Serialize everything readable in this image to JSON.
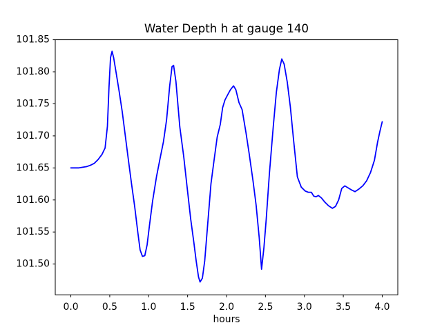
{
  "figure": {
    "background_color": "#ffffff",
    "frame_color": "#000000"
  },
  "chart_data": {
    "type": "line",
    "title": "Water Depth h at gauge 140",
    "xlabel": "hours",
    "ylabel": "",
    "grid": false,
    "legend": null,
    "line_color": "#0000ff",
    "xlim": [
      -0.2,
      4.2
    ],
    "ylim": [
      101.452,
      101.85
    ],
    "xticks": [
      0.0,
      0.5,
      1.0,
      1.5,
      2.0,
      2.5,
      3.0,
      3.5,
      4.0
    ],
    "xtick_labels": [
      "0.0",
      "0.5",
      "1.0",
      "1.5",
      "2.0",
      "2.5",
      "3.0",
      "3.5",
      "4.0"
    ],
    "yticks": [
      101.5,
      101.55,
      101.6,
      101.65,
      101.7,
      101.75,
      101.8,
      101.85
    ],
    "ytick_labels": [
      "101.50",
      "101.55",
      "101.60",
      "101.65",
      "101.70",
      "101.75",
      "101.80",
      "101.85"
    ],
    "series": [
      {
        "name": "water-depth-h",
        "x": [
          0.0,
          0.05,
          0.1,
          0.15,
          0.2,
          0.25,
          0.3,
          0.35,
          0.4,
          0.44,
          0.47,
          0.49,
          0.51,
          0.53,
          0.55,
          0.58,
          0.62,
          0.66,
          0.7,
          0.74,
          0.78,
          0.82,
          0.86,
          0.89,
          0.92,
          0.95,
          0.98,
          1.01,
          1.05,
          1.1,
          1.15,
          1.19,
          1.23,
          1.27,
          1.3,
          1.32,
          1.35,
          1.4,
          1.45,
          1.49,
          1.54,
          1.58,
          1.61,
          1.64,
          1.66,
          1.69,
          1.72,
          1.76,
          1.8,
          1.84,
          1.88,
          1.92,
          1.95,
          1.98,
          2.01,
          2.05,
          2.09,
          2.12,
          2.16,
          2.2,
          2.25,
          2.29,
          2.34,
          2.38,
          2.42,
          2.45,
          2.48,
          2.51,
          2.55,
          2.6,
          2.64,
          2.68,
          2.71,
          2.74,
          2.78,
          2.82,
          2.86,
          2.91,
          2.96,
          3.01,
          3.05,
          3.09,
          3.12,
          3.15,
          3.18,
          3.22,
          3.26,
          3.31,
          3.36,
          3.4,
          3.44,
          3.48,
          3.52,
          3.56,
          3.6,
          3.65,
          3.7,
          3.75,
          3.8,
          3.85,
          3.9,
          3.94,
          3.97,
          4.0
        ],
        "y": [
          101.65,
          101.65,
          101.65,
          101.651,
          101.652,
          101.654,
          101.657,
          101.663,
          101.671,
          101.681,
          101.715,
          101.775,
          101.822,
          101.832,
          101.822,
          101.8,
          101.77,
          101.738,
          101.7,
          101.662,
          101.625,
          101.59,
          101.55,
          101.522,
          101.512,
          101.513,
          101.53,
          101.56,
          101.598,
          101.636,
          101.667,
          101.691,
          101.725,
          101.778,
          101.808,
          101.81,
          101.785,
          101.714,
          101.668,
          101.624,
          101.57,
          101.534,
          101.505,
          101.48,
          101.472,
          101.478,
          101.505,
          101.565,
          101.625,
          101.662,
          101.698,
          101.718,
          101.744,
          101.756,
          101.763,
          101.772,
          101.778,
          101.772,
          101.752,
          101.741,
          101.705,
          101.673,
          101.63,
          101.592,
          101.541,
          101.492,
          101.525,
          101.57,
          101.64,
          101.714,
          101.768,
          101.804,
          101.82,
          101.812,
          101.784,
          101.745,
          101.695,
          101.636,
          101.62,
          101.614,
          101.612,
          101.612,
          101.606,
          101.605,
          101.607,
          101.603,
          101.597,
          101.591,
          101.587,
          101.59,
          101.6,
          101.618,
          101.622,
          101.619,
          101.616,
          101.613,
          101.617,
          101.622,
          101.63,
          101.643,
          101.662,
          101.69,
          101.707,
          101.722
        ]
      }
    ]
  }
}
